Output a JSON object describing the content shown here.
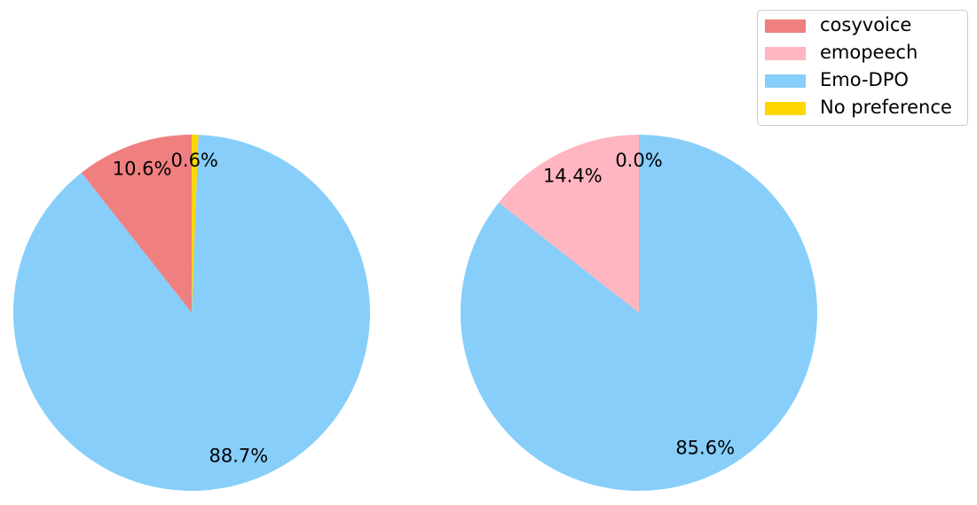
{
  "chart_data": [
    {
      "type": "pie",
      "categories": [
        "cosyvoice",
        "Emo-DPO",
        "No preference"
      ],
      "values": [
        10.6,
        88.7,
        0.6
      ],
      "value_labels": [
        "10.6%",
        "88.7%",
        "0.6%"
      ],
      "colors": [
        "#f08080",
        "#87cefa",
        "#ffd700"
      ]
    },
    {
      "type": "pie",
      "categories": [
        "emopeech",
        "Emo-DPO",
        "No preference"
      ],
      "values": [
        14.4,
        85.6,
        0.0
      ],
      "value_labels": [
        "14.4%",
        "85.6%",
        "0.0%"
      ],
      "colors": [
        "#ffb6c1",
        "#87cefa",
        "#ffd700"
      ]
    }
  ],
  "legend": {
    "position": "upper right",
    "entries": [
      {
        "label": "cosyvoice",
        "color": "#f08080"
      },
      {
        "label": "emopeech",
        "color": "#ffb6c1"
      },
      {
        "label": "Emo-DPO",
        "color": "#87cefa"
      },
      {
        "label": "No preference",
        "color": "#ffd700"
      }
    ]
  }
}
